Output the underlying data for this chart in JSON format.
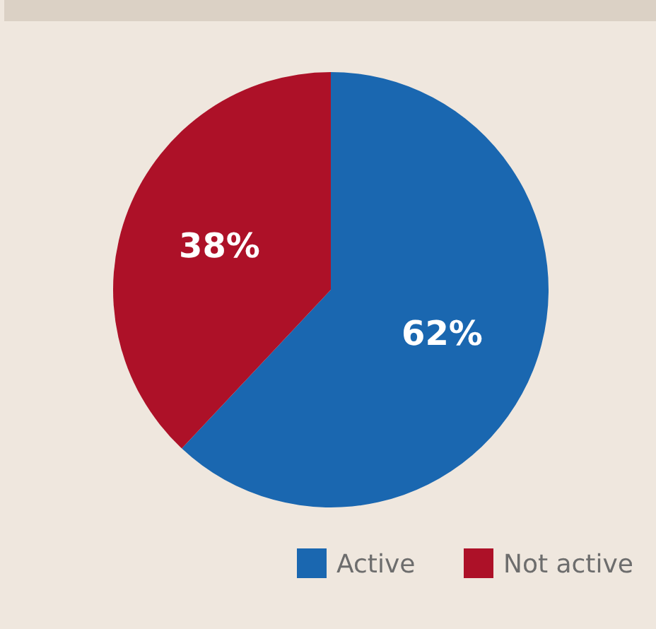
{
  "chart_data": {
    "type": "pie",
    "categories": [
      "Active",
      "Not active"
    ],
    "values": [
      62,
      38
    ],
    "colors": [
      "#1a67b0",
      "#ad1128"
    ],
    "value_labels": [
      "62%",
      "38%"
    ],
    "legend": "bottom right"
  }
}
